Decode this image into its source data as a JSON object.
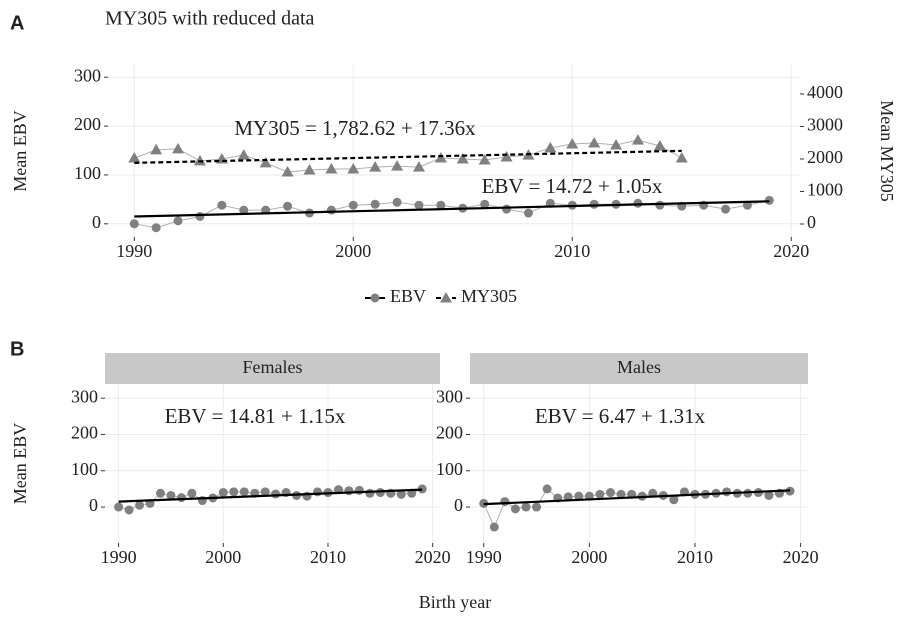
{
  "figure": {
    "panel_labels": [
      "A",
      "B"
    ],
    "xlabel": "Birth year"
  },
  "chart_data": [
    {
      "type": "line",
      "title": "MY305 with reduced data",
      "ylabel": "Mean EBV",
      "y2label": "Mean MY305",
      "xlim": [
        1988.8,
        2020.4
      ],
      "xticks": [
        1990,
        2000,
        2010,
        2020
      ],
      "ylim": [
        -27,
        325
      ],
      "yticks": [
        0,
        100,
        200,
        300
      ],
      "y2lim": [
        -400,
        4890
      ],
      "y2ticks": [
        0,
        1000,
        2000,
        3000,
        4000
      ],
      "grid": true,
      "legend": "bottom",
      "annotations": [
        "MY305 = 1,782.62 + 17.36x",
        "EBV = 14.72 + 1.05x"
      ],
      "series": [
        {
          "name": "EBV",
          "color": "#808080",
          "marker": "circle",
          "trend_color": "#000000",
          "trend_style": "solid",
          "x": [
            1990,
            1991,
            1992,
            1993,
            1994,
            1995,
            1996,
            1997,
            1998,
            1999,
            2000,
            2001,
            2002,
            2003,
            2004,
            2005,
            2006,
            2007,
            2008,
            2009,
            2010,
            2011,
            2012,
            2013,
            2014,
            2015,
            2016,
            2017,
            2018,
            2019
          ],
          "values": [
            0,
            -8,
            6,
            15,
            38,
            28,
            28,
            36,
            22,
            28,
            38,
            40,
            44,
            38,
            38,
            32,
            40,
            30,
            22,
            42,
            38,
            40,
            40,
            42,
            38,
            36,
            38,
            30,
            38,
            48
          ],
          "trend_x": [
            1990,
            2019
          ],
          "trend_values": [
            15,
            46
          ]
        },
        {
          "name": "MY305",
          "color": "#808080",
          "marker": "triangle",
          "axis": "y2",
          "trend_color": "#000000",
          "trend_style": "dashed",
          "x": [
            1990,
            1991,
            1992,
            1993,
            1994,
            1995,
            1996,
            1997,
            1998,
            1999,
            2000,
            2001,
            2002,
            2003,
            2004,
            2005,
            2006,
            2007,
            2008,
            2009,
            2010,
            2011,
            2012,
            2013,
            2014,
            2015
          ],
          "values": [
            2030,
            2280,
            2310,
            1940,
            2000,
            2120,
            1880,
            1600,
            1660,
            1690,
            1690,
            1750,
            1780,
            1750,
            2030,
            2000,
            1970,
            2060,
            2120,
            2340,
            2460,
            2490,
            2430,
            2580,
            2400,
            2030
          ],
          "trend_x": [
            1990,
            2015
          ],
          "trend_values": [
            1880,
            2250
          ]
        }
      ]
    },
    {
      "type": "line",
      "strip": "Females",
      "ylabel": "Mean EBV",
      "xlim": [
        1988.7,
        2020.7
      ],
      "xticks": [
        1990,
        2000,
        2010,
        2020
      ],
      "ylim": [
        -99,
        339
      ],
      "yticks": [
        0,
        100,
        200,
        300
      ],
      "grid": true,
      "annotations": [
        "EBV = 14.81 + 1.15x"
      ],
      "series": [
        {
          "color": "#808080",
          "marker": "circle",
          "trend_color": "#000000",
          "trend_style": "solid",
          "x": [
            1990,
            1991,
            1992,
            1993,
            1994,
            1995,
            1996,
            1997,
            1998,
            1999,
            2000,
            2001,
            2002,
            2003,
            2004,
            2005,
            2006,
            2007,
            2008,
            2009,
            2010,
            2011,
            2012,
            2013,
            2014,
            2015,
            2016,
            2017,
            2018,
            2019
          ],
          "values": [
            0,
            -8,
            5,
            10,
            38,
            32,
            26,
            38,
            18,
            25,
            40,
            42,
            42,
            38,
            42,
            36,
            40,
            32,
            30,
            42,
            40,
            48,
            45,
            46,
            38,
            40,
            38,
            35,
            38,
            50
          ],
          "trend_x": [
            1990,
            2019
          ],
          "trend_values": [
            15,
            48
          ]
        }
      ]
    },
    {
      "type": "line",
      "strip": "Males",
      "xlim": [
        1988.7,
        2020.7
      ],
      "xticks": [
        1990,
        2000,
        2010,
        2020
      ],
      "ylim": [
        -99,
        339
      ],
      "yticks": [
        0,
        100,
        200,
        300
      ],
      "grid": true,
      "annotations": [
        "EBV = 6.47 + 1.31x"
      ],
      "series": [
        {
          "color": "#808080",
          "marker": "circle",
          "trend_color": "#000000",
          "trend_style": "solid",
          "x": [
            1990,
            1991,
            1992,
            1993,
            1994,
            1995,
            1996,
            1997,
            1998,
            1999,
            2000,
            2001,
            2002,
            2003,
            2004,
            2005,
            2006,
            2007,
            2008,
            2009,
            2010,
            2011,
            2012,
            2013,
            2014,
            2015,
            2016,
            2017,
            2018,
            2019
          ],
          "values": [
            10,
            -55,
            15,
            -5,
            0,
            0,
            50,
            25,
            28,
            30,
            30,
            35,
            40,
            35,
            35,
            30,
            38,
            32,
            20,
            42,
            35,
            35,
            38,
            42,
            38,
            38,
            40,
            32,
            38,
            44
          ],
          "trend_x": [
            1990,
            2019
          ],
          "trend_values": [
            8,
            46
          ]
        }
      ]
    }
  ]
}
